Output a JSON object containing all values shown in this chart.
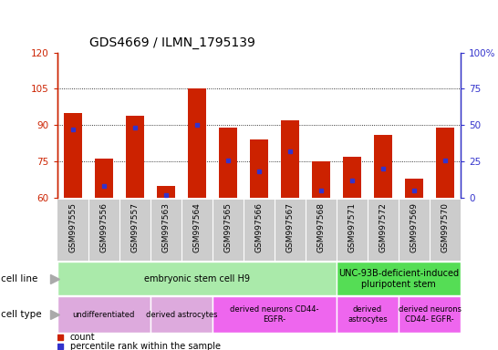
{
  "title": "GDS4669 / ILMN_1795139",
  "samples": [
    "GSM997555",
    "GSM997556",
    "GSM997557",
    "GSM997563",
    "GSM997564",
    "GSM997565",
    "GSM997566",
    "GSM997567",
    "GSM997568",
    "GSM997571",
    "GSM997572",
    "GSM997569",
    "GSM997570"
  ],
  "bar_values": [
    95,
    76,
    94,
    65,
    105,
    89,
    84,
    92,
    75,
    77,
    86,
    68,
    89
  ],
  "percentile_values": [
    47,
    8,
    48,
    2,
    50,
    26,
    18,
    32,
    5,
    12,
    20,
    5,
    26
  ],
  "ylim_left": [
    60,
    120
  ],
  "ylim_right": [
    0,
    100
  ],
  "yticks_left": [
    60,
    75,
    90,
    105,
    120
  ],
  "yticks_right": [
    0,
    25,
    50,
    75,
    100
  ],
  "bar_color": "#cc2200",
  "blue_color": "#3333cc",
  "cell_line_groups": [
    {
      "label": "embryonic stem cell H9",
      "start": 0,
      "end": 8,
      "color": "#aaeaaa"
    },
    {
      "label": "UNC-93B-deficient-induced\npluripotent stem",
      "start": 9,
      "end": 12,
      "color": "#55dd55"
    }
  ],
  "cell_type_groups": [
    {
      "label": "undifferentiated",
      "start": 0,
      "end": 2,
      "color": "#ddaadd"
    },
    {
      "label": "derived astrocytes",
      "start": 3,
      "end": 4,
      "color": "#ddaadd"
    },
    {
      "label": "derived neurons CD44-\nEGFR-",
      "start": 5,
      "end": 8,
      "color": "#ee66ee"
    },
    {
      "label": "derived\nastrocytes",
      "start": 9,
      "end": 10,
      "color": "#ee66ee"
    },
    {
      "label": "derived neurons\nCD44- EGFR-",
      "start": 11,
      "end": 12,
      "color": "#ee66ee"
    }
  ],
  "xtick_bg_color": "#cccccc",
  "cell_line_label": "cell line",
  "cell_type_label": "cell type"
}
